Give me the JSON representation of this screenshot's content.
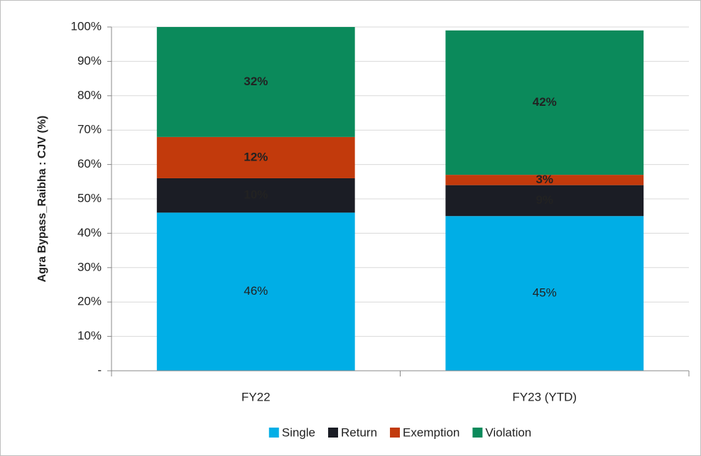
{
  "chart_data": {
    "type": "stacked_bar",
    "y_axis_label": "Agra Bypass_Raibha : CJV (%)",
    "categories": [
      "FY22",
      "FY23 (YTD)"
    ],
    "series": [
      {
        "name": "Single",
        "color": "#00aee6",
        "label_color": "#333333",
        "values": [
          46,
          45
        ],
        "value_labels": [
          "46%",
          "45%"
        ]
      },
      {
        "name": "Return",
        "color": "#1b1d25",
        "label_color": "#ffffff",
        "values": [
          10,
          9
        ],
        "value_labels": [
          "10%",
          "9%"
        ]
      },
      {
        "name": "Exemption",
        "color": "#c23a0c",
        "label_color": "#ffffff",
        "values": [
          12,
          3
        ],
        "value_labels": [
          "12%",
          "3%"
        ]
      },
      {
        "name": "Violation",
        "color": "#0b8a5b",
        "label_color": "#ffffff",
        "values": [
          32,
          42
        ],
        "value_labels": [
          "32%",
          "42%"
        ]
      }
    ],
    "ylim": [
      0,
      100
    ],
    "yticks": [
      {
        "value": 0,
        "label": "-"
      },
      {
        "value": 10,
        "label": "10%"
      },
      {
        "value": 20,
        "label": "20%"
      },
      {
        "value": 30,
        "label": "30%"
      },
      {
        "value": 40,
        "label": "40%"
      },
      {
        "value": 50,
        "label": "50%"
      },
      {
        "value": 60,
        "label": "60%"
      },
      {
        "value": 70,
        "label": "70%"
      },
      {
        "value": 80,
        "label": "80%"
      },
      {
        "value": 90,
        "label": "90%"
      },
      {
        "value": 100,
        "label": "100%"
      }
    ],
    "grid": true,
    "legend": "bottom"
  }
}
